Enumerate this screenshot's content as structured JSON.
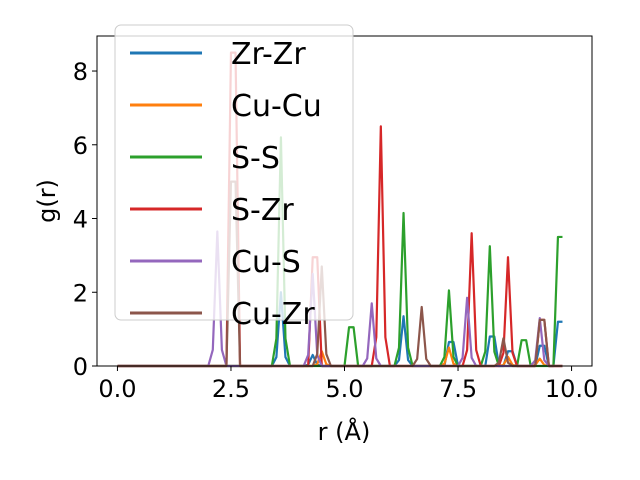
{
  "chart_data": {
    "type": "line",
    "xlabel": "r (Å)",
    "ylabel": "g(r)",
    "xlim": [
      -0.45,
      10.45
    ],
    "ylim": [
      0,
      8.95
    ],
    "xticks": [
      0.0,
      2.5,
      5.0,
      7.5,
      10.0
    ],
    "xtick_labels": [
      "0.0",
      "2.5",
      "5.0",
      "7.5",
      "10.0"
    ],
    "yticks": [
      0,
      2,
      4,
      6,
      8
    ],
    "ytick_labels": [
      "0",
      "2",
      "4",
      "6",
      "8"
    ],
    "grid": false,
    "legend_position": "upper-left",
    "series": [
      {
        "name": "Zr-Zr",
        "color": "#1f77b4",
        "peaks": [
          [
            3.6,
            2.0
          ],
          [
            4.3,
            0.3
          ],
          [
            6.3,
            1.35
          ],
          [
            7.35,
            0.65
          ],
          [
            8.25,
            0.8
          ],
          [
            8.65,
            0.4
          ],
          [
            9.35,
            0.55
          ],
          [
            9.75,
            1.2
          ]
        ]
      },
      {
        "name": "Cu-Cu",
        "color": "#ff7f0e",
        "peaks": [
          [
            4.5,
            0.4
          ],
          [
            7.3,
            0.5
          ],
          [
            8.6,
            0.25
          ],
          [
            9.3,
            0.2
          ]
        ]
      },
      {
        "name": "S-S",
        "color": "#2ca02c",
        "peaks": [
          [
            3.6,
            6.2
          ],
          [
            5.15,
            1.05
          ],
          [
            6.3,
            4.15
          ],
          [
            7.3,
            2.05
          ],
          [
            8.2,
            3.25
          ],
          [
            8.95,
            0.7
          ],
          [
            9.75,
            3.5
          ]
        ]
      },
      {
        "name": "S-Zr",
        "color": "#d62728",
        "peaks": [
          [
            2.55,
            8.5
          ],
          [
            4.35,
            2.95
          ],
          [
            5.8,
            6.5
          ],
          [
            7.8,
            3.6
          ],
          [
            8.6,
            2.95
          ],
          [
            9.35,
            1.25
          ]
        ]
      },
      {
        "name": "Cu-S",
        "color": "#9467bd",
        "peaks": [
          [
            2.2,
            3.65
          ],
          [
            4.3,
            2.5
          ],
          [
            5.6,
            1.7
          ],
          [
            7.7,
            1.85
          ],
          [
            9.3,
            1.3
          ]
        ]
      },
      {
        "name": "Cu-Zr",
        "color": "#8c564b",
        "peaks": [
          [
            2.55,
            5.0
          ],
          [
            4.5,
            2.7
          ],
          [
            6.7,
            1.6
          ],
          [
            8.5,
            0.75
          ],
          [
            9.35,
            1.25
          ]
        ]
      }
    ]
  }
}
